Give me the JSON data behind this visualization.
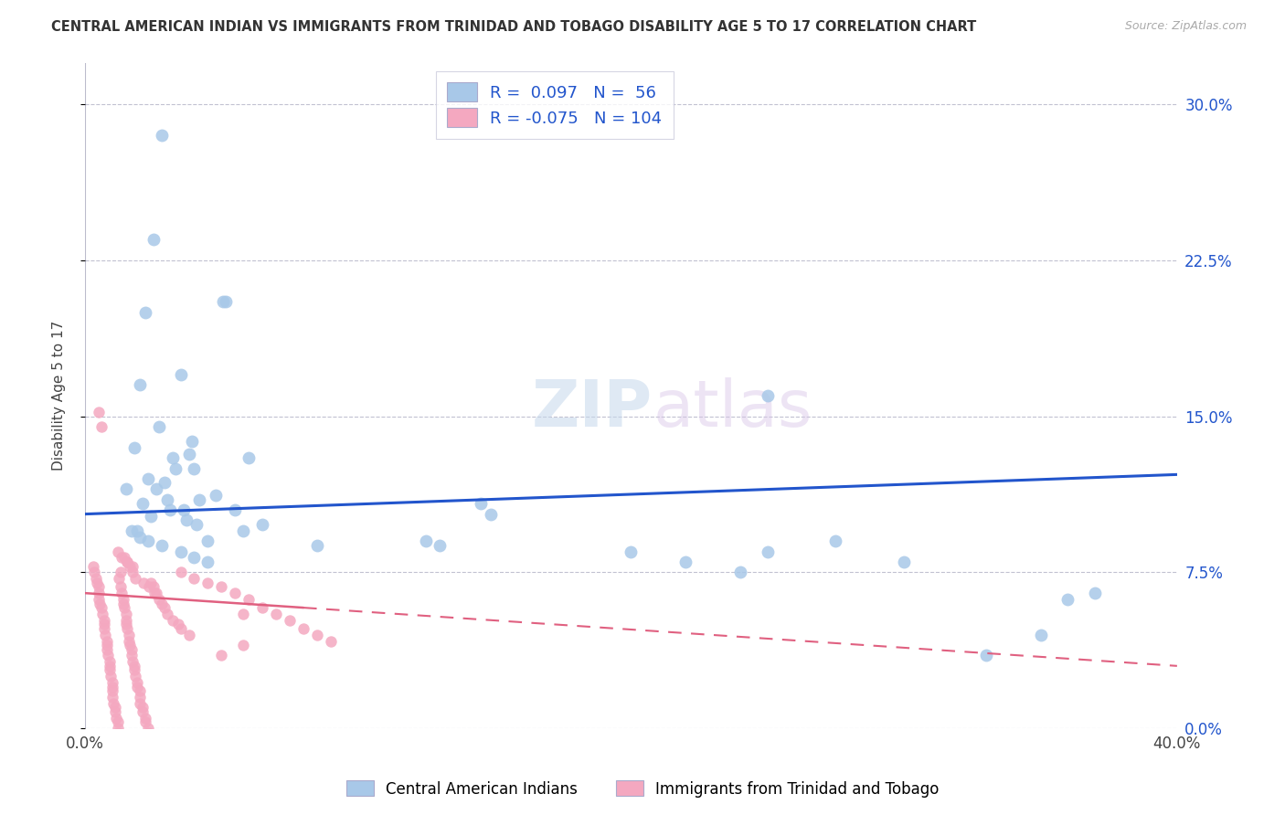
{
  "title": "CENTRAL AMERICAN INDIAN VS IMMIGRANTS FROM TRINIDAD AND TOBAGO DISABILITY AGE 5 TO 17 CORRELATION CHART",
  "source": "Source: ZipAtlas.com",
  "ylabel": "Disability Age 5 to 17",
  "ytick_values": [
    0.0,
    7.5,
    15.0,
    22.5,
    30.0
  ],
  "xlim": [
    0.0,
    40.0
  ],
  "ylim": [
    0.0,
    32.0
  ],
  "blue_R": 0.097,
  "blue_N": 56,
  "pink_R": -0.075,
  "pink_N": 104,
  "blue_color": "#a8c8e8",
  "pink_color": "#f4a8c0",
  "blue_line_color": "#2255cc",
  "pink_line_color": "#e06080",
  "legend_label_blue": "Central American Indians",
  "legend_label_pink": "Immigrants from Trinidad and Tobago",
  "watermark": "ZIPatlas",
  "blue_line_x0": 0.0,
  "blue_line_y0": 10.3,
  "blue_line_x1": 40.0,
  "blue_line_y1": 12.2,
  "pink_solid_x0": 0.0,
  "pink_solid_y0": 6.5,
  "pink_solid_x1": 8.0,
  "pink_solid_y1": 5.8,
  "pink_dash_x0": 8.0,
  "pink_dash_y0": 5.8,
  "pink_dash_x1": 40.0,
  "pink_dash_y1": 3.0,
  "blue_points_x": [
    2.8,
    2.5,
    2.2,
    3.5,
    5.05,
    5.15,
    2.0,
    1.8,
    3.2,
    3.8,
    4.0,
    2.3,
    2.6,
    3.0,
    3.1,
    14.5,
    14.85,
    2.7,
    3.9,
    6.0,
    25.0,
    27.5,
    2.4,
    3.7,
    4.1,
    1.9,
    4.5,
    5.8,
    12.5,
    20.0,
    22.0,
    30.0,
    36.0,
    1.5,
    2.1,
    3.3,
    4.8,
    6.5,
    8.5,
    24.0,
    2.9,
    3.6,
    4.2,
    5.5,
    13.0,
    25.0,
    33.0,
    1.7,
    2.0,
    2.3,
    2.8,
    3.5,
    4.0,
    4.5,
    35.0,
    37.0
  ],
  "blue_points_y": [
    28.5,
    23.5,
    20.0,
    17.0,
    20.5,
    20.5,
    16.5,
    13.5,
    13.0,
    13.2,
    12.5,
    12.0,
    11.5,
    11.0,
    10.5,
    10.8,
    10.3,
    14.5,
    13.8,
    13.0,
    16.0,
    9.0,
    10.2,
    10.0,
    9.8,
    9.5,
    9.0,
    9.5,
    9.0,
    8.5,
    8.0,
    8.0,
    6.2,
    11.5,
    10.8,
    12.5,
    11.2,
    9.8,
    8.8,
    7.5,
    11.8,
    10.5,
    11.0,
    10.5,
    8.8,
    8.5,
    3.5,
    9.5,
    9.2,
    9.0,
    8.8,
    8.5,
    8.2,
    8.0,
    4.5,
    6.5
  ],
  "pink_points_x": [
    0.3,
    0.35,
    0.4,
    0.45,
    0.5,
    0.5,
    0.5,
    0.5,
    0.55,
    0.6,
    0.6,
    0.65,
    0.7,
    0.7,
    0.7,
    0.75,
    0.8,
    0.8,
    0.8,
    0.85,
    0.9,
    0.9,
    0.9,
    0.95,
    1.0,
    1.0,
    1.0,
    1.0,
    1.05,
    1.1,
    1.1,
    1.15,
    1.2,
    1.2,
    1.2,
    1.25,
    1.3,
    1.3,
    1.35,
    1.4,
    1.4,
    1.45,
    1.5,
    1.5,
    1.5,
    1.55,
    1.6,
    1.6,
    1.65,
    1.7,
    1.7,
    1.75,
    1.8,
    1.8,
    1.85,
    1.9,
    1.9,
    2.0,
    2.0,
    2.0,
    2.1,
    2.1,
    2.2,
    2.2,
    2.3,
    2.3,
    2.4,
    2.5,
    2.6,
    2.7,
    2.8,
    2.9,
    3.0,
    3.2,
    3.4,
    3.5,
    3.5,
    3.8,
    4.0,
    4.5,
    5.0,
    5.0,
    5.5,
    5.8,
    5.8,
    6.0,
    6.5,
    7.0,
    7.5,
    8.0,
    8.5,
    9.0,
    1.45,
    1.55,
    1.65,
    1.75,
    1.85,
    2.15,
    2.35,
    2.55,
    1.2,
    1.35,
    1.55,
    1.75
  ],
  "pink_points_y": [
    7.8,
    7.5,
    7.2,
    7.0,
    15.2,
    6.8,
    6.5,
    6.2,
    6.0,
    5.8,
    14.5,
    5.5,
    5.2,
    5.0,
    4.8,
    4.5,
    4.2,
    4.0,
    3.8,
    3.5,
    3.2,
    3.0,
    2.8,
    2.5,
    2.2,
    2.0,
    1.8,
    1.5,
    1.2,
    1.0,
    0.8,
    0.5,
    0.3,
    0.0,
    -0.2,
    7.2,
    7.5,
    6.8,
    6.5,
    6.2,
    6.0,
    5.8,
    5.5,
    5.2,
    5.0,
    4.8,
    4.5,
    4.2,
    4.0,
    3.8,
    3.5,
    3.2,
    3.0,
    2.8,
    2.5,
    2.2,
    2.0,
    1.8,
    1.5,
    1.2,
    1.0,
    0.8,
    0.5,
    0.3,
    0.0,
    -0.2,
    7.0,
    6.8,
    6.5,
    6.2,
    6.0,
    5.8,
    5.5,
    5.2,
    5.0,
    4.8,
    7.5,
    4.5,
    7.2,
    7.0,
    6.8,
    3.5,
    6.5,
    5.5,
    4.0,
    6.2,
    5.8,
    5.5,
    5.2,
    4.8,
    4.5,
    4.2,
    8.2,
    8.0,
    7.8,
    7.5,
    7.2,
    7.0,
    6.8,
    6.5,
    8.5,
    8.2,
    8.0,
    7.8
  ]
}
